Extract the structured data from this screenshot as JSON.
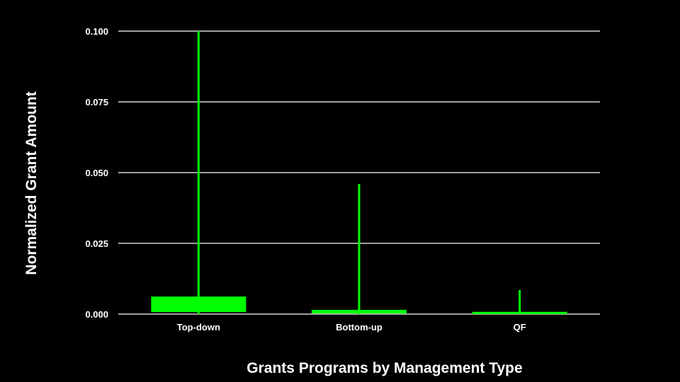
{
  "chart_data": {
    "type": "box",
    "title": "",
    "xlabel": "Grants Programs by Management Type",
    "ylabel": "Normalized Grant Amount",
    "ylim": [
      0,
      0.1
    ],
    "yticks": [
      "0.000",
      "0.025",
      "0.050",
      "0.075",
      "0.100"
    ],
    "grid": true,
    "color": "#00ff00",
    "background": "#000000",
    "categories": [
      "Top-down",
      "Bottom-up",
      "QF"
    ],
    "boxes": [
      {
        "category": "Top-down",
        "whisker_low": 0.0,
        "q1": 0.0007,
        "q3": 0.0062,
        "whisker_high": 0.1
      },
      {
        "category": "Bottom-up",
        "whisker_low": 0.0,
        "q1": 0.0002,
        "q3": 0.0015,
        "whisker_high": 0.046
      },
      {
        "category": "QF",
        "whisker_low": 0.0,
        "q1": 0.0,
        "q3": 0.0008,
        "whisker_high": 0.0085
      }
    ]
  }
}
